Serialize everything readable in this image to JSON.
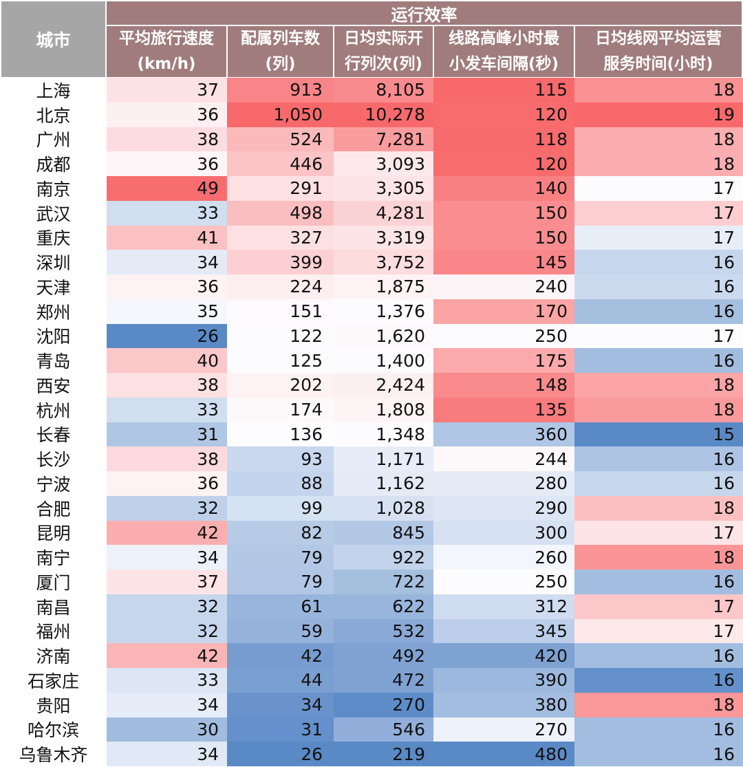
{
  "header": {
    "city_label": "城市",
    "group_label": "运行效率",
    "columns": [
      {
        "line1": "平均旅行速度",
        "line2": "(km/h)"
      },
      {
        "line1": "配属列车数",
        "line2": "(列)"
      },
      {
        "line1": "日均实际开",
        "line2": "行列次(列)"
      },
      {
        "line1": "线路高峰小时最",
        "line2": "小发车间隔(秒)"
      },
      {
        "line1": "日均线网平均运营",
        "line2": "服务时间(小时)"
      }
    ]
  },
  "colors": {
    "header_city_bg": "#a6a6a6",
    "header_group_bg": "#a07c7c",
    "scale_high_red": "#f8696b",
    "scale_mid_white": "#fcfcff",
    "scale_low_blue": "#5a8ac6"
  },
  "rows": [
    {
      "city": "上海",
      "v": [
        "37",
        "913",
        "8,105",
        "115",
        "18"
      ],
      "bg": [
        "#fde2e4",
        "#f98588",
        "#f98a8d",
        "#f8696b",
        "#fa9193"
      ]
    },
    {
      "city": "北京",
      "v": [
        "36",
        "1,050",
        "10,278",
        "120",
        "19"
      ],
      "bg": [
        "#fdf0f2",
        "#f8696b",
        "#f8696b",
        "#f86c6e",
        "#f8696b"
      ]
    },
    {
      "city": "广州",
      "v": [
        "38",
        "524",
        "7,281",
        "118",
        "18"
      ],
      "bg": [
        "#fcdcdf",
        "#fbb9bb",
        "#fa9c9e",
        "#f86b6d",
        "#fbadaf"
      ]
    },
    {
      "city": "成都",
      "v": [
        "36",
        "446",
        "3,093",
        "120",
        "18"
      ],
      "bg": [
        "#fdf5f7",
        "#fcc4c6",
        "#fde9eb",
        "#f86c6e",
        "#fbadaf"
      ]
    },
    {
      "city": "南京",
      "v": [
        "49",
        "291",
        "3,305",
        "140",
        "17"
      ],
      "bg": [
        "#f86d6f",
        "#fde0e2",
        "#fde4e6",
        "#f98082",
        "#fcfcff"
      ]
    },
    {
      "city": "武汉",
      "v": [
        "33",
        "498",
        "4,281",
        "150",
        "17"
      ],
      "bg": [
        "#d0deef",
        "#fbbec0",
        "#fcd3d5",
        "#fa8d90",
        "#fcced0"
      ]
    },
    {
      "city": "重庆",
      "v": [
        "41",
        "327",
        "3,319",
        "150",
        "17"
      ],
      "bg": [
        "#fbc1c3",
        "#fde0e2",
        "#fde4e6",
        "#fa8d90",
        "#e8eef8"
      ]
    },
    {
      "city": "深圳",
      "v": [
        "34",
        "399",
        "3,752",
        "145",
        "16"
      ],
      "bg": [
        "#e4ebf6",
        "#fcd0d2",
        "#fddcde",
        "#f98789",
        "#c6d6ec"
      ]
    },
    {
      "city": "天津",
      "v": [
        "36",
        "224",
        "1,875",
        "240",
        "16"
      ],
      "bg": [
        "#fdf2f4",
        "#fdeef0",
        "#fdf3f5",
        "#fcf5f7",
        "#cbdaee"
      ]
    },
    {
      "city": "郑州",
      "v": [
        "35",
        "151",
        "1,376",
        "170",
        "16"
      ],
      "bg": [
        "#f5f7fd",
        "#fcfafc",
        "#fcfcff",
        "#fba4a6",
        "#a5bfdf"
      ]
    },
    {
      "city": "沈阳",
      "v": [
        "26",
        "122",
        "1,620",
        "250",
        "17"
      ],
      "bg": [
        "#5a8ac6",
        "#fcfcff",
        "#fcf9fb",
        "#fcfcff",
        "#fcfcff"
      ]
    },
    {
      "city": "青岛",
      "v": [
        "40",
        "125",
        "1,400",
        "175",
        "16"
      ],
      "bg": [
        "#fbc8ca",
        "#fcfcff",
        "#fcfcff",
        "#fba9ab",
        "#a3bde0"
      ]
    },
    {
      "city": "西安",
      "v": [
        "38",
        "202",
        "2,424",
        "148",
        "18"
      ],
      "bg": [
        "#fde0e2",
        "#fdf3f5",
        "#fdf0f2",
        "#f98b8d",
        "#fba5a7"
      ]
    },
    {
      "city": "杭州",
      "v": [
        "33",
        "174",
        "1,808",
        "135",
        "18"
      ],
      "bg": [
        "#d0deef",
        "#fdf8fa",
        "#fdf4f6",
        "#f87b7d",
        "#fa9a9c"
      ]
    },
    {
      "city": "长春",
      "v": [
        "31",
        "136",
        "1,348",
        "360",
        "15"
      ],
      "bg": [
        "#b0c6e5",
        "#fdfcff",
        "#fcfcff",
        "#b0c6e5",
        "#5a8ac6"
      ]
    },
    {
      "city": "长沙",
      "v": [
        "38",
        "93",
        "1,171",
        "244",
        "16"
      ],
      "bg": [
        "#fddadd",
        "#c9d8ee",
        "#e6edf8",
        "#fdf9fb",
        "#adc4e4"
      ]
    },
    {
      "city": "宁波",
      "v": [
        "36",
        "88",
        "1,162",
        "280",
        "16"
      ],
      "bg": [
        "#fdf2f4",
        "#c4d4ec",
        "#e4ebf6",
        "#e4ebf6",
        "#c6d6ec"
      ]
    },
    {
      "city": "合肥",
      "v": [
        "32",
        "99",
        "1,028",
        "290",
        "18"
      ],
      "bg": [
        "#bfd1ea",
        "#d5e2f2",
        "#d6e2f2",
        "#dce6f4",
        "#fcbfc1"
      ]
    },
    {
      "city": "昆明",
      "v": [
        "42",
        "82",
        "845",
        "300",
        "17"
      ],
      "bg": [
        "#faaeb0",
        "#b7cbe6",
        "#b3c8e5",
        "#d6e2f2",
        "#fde4e6"
      ]
    },
    {
      "city": "南宁",
      "v": [
        "34",
        "79",
        "922",
        "260",
        "18"
      ],
      "bg": [
        "#ecf1fa",
        "#b3c8e5",
        "#c3d3eb",
        "#f3f6fc",
        "#f99597"
      ]
    },
    {
      "city": "厦门",
      "v": [
        "37",
        "79",
        "722",
        "250",
        "16"
      ],
      "bg": [
        "#fde5e7",
        "#b1c7e5",
        "#a5bfdf",
        "#fcfcff",
        "#a3bde0"
      ]
    },
    {
      "city": "南昌",
      "v": [
        "32",
        "61",
        "622",
        "312",
        "17"
      ],
      "bg": [
        "#c6d6ec",
        "#98b5dc",
        "#98b5dc",
        "#d0ddf0",
        "#fcc7c9"
      ]
    },
    {
      "city": "福州",
      "v": [
        "32",
        "59",
        "532",
        "345",
        "17"
      ],
      "bg": [
        "#c6d6ec",
        "#95b2db",
        "#8aa9d6",
        "#bcceea",
        "#fde8ea"
      ]
    },
    {
      "city": "济南",
      "v": [
        "42",
        "42",
        "492",
        "420",
        "16"
      ],
      "bg": [
        "#fbb5b7",
        "#779dd0",
        "#81a3d3",
        "#7ea2d2",
        "#a3bde0"
      ]
    },
    {
      "city": "石家庄",
      "v": [
        "33",
        "44",
        "472",
        "390",
        "16"
      ],
      "bg": [
        "#dce6f4",
        "#7a9fd1",
        "#7fa2d2",
        "#9db8de",
        "#6490cb"
      ]
    },
    {
      "city": "贵阳",
      "v": [
        "34",
        "34",
        "270",
        "380",
        "18"
      ],
      "bg": [
        "#e6edf8",
        "#6a93cc",
        "#5e8cc8",
        "#a3bde0",
        "#f99799"
      ]
    },
    {
      "city": "哈尔滨",
      "v": [
        "30",
        "31",
        "546",
        "270",
        "16"
      ],
      "bg": [
        "#a1bcdf",
        "#6490cb",
        "#91afda",
        "#eef2fa",
        "#a3bde0"
      ]
    },
    {
      "city": "乌鲁木齐",
      "v": [
        "34",
        "26",
        "219",
        "480",
        "16"
      ],
      "bg": [
        "#e0e9f5",
        "#5a8ac6",
        "#5a8ac6",
        "#5a8ac6",
        "#a3bde0"
      ]
    }
  ],
  "chart_data": {
    "type": "table",
    "title": "运行效率",
    "index_label": "城市",
    "columns": [
      "平均旅行速度(km/h)",
      "配属列车数(列)",
      "日均实际开行列次(列)",
      "线路高峰小时最小发车间隔(秒)",
      "日均线网平均运营服务时间(小时)"
    ],
    "color_scale": "red-white-blue per column (high=red, low=blue)",
    "rows": [
      {
        "city": "上海",
        "values": [
          37,
          913,
          8105,
          115,
          18
        ]
      },
      {
        "city": "北京",
        "values": [
          36,
          1050,
          10278,
          120,
          19
        ]
      },
      {
        "city": "广州",
        "values": [
          38,
          524,
          7281,
          118,
          18
        ]
      },
      {
        "city": "成都",
        "values": [
          36,
          446,
          3093,
          120,
          18
        ]
      },
      {
        "city": "南京",
        "values": [
          49,
          291,
          3305,
          140,
          17
        ]
      },
      {
        "city": "武汉",
        "values": [
          33,
          498,
          4281,
          150,
          17
        ]
      },
      {
        "city": "重庆",
        "values": [
          41,
          327,
          3319,
          150,
          17
        ]
      },
      {
        "city": "深圳",
        "values": [
          34,
          399,
          3752,
          145,
          16
        ]
      },
      {
        "city": "天津",
        "values": [
          36,
          224,
          1875,
          240,
          16
        ]
      },
      {
        "city": "郑州",
        "values": [
          35,
          151,
          1376,
          170,
          16
        ]
      },
      {
        "city": "沈阳",
        "values": [
          26,
          122,
          1620,
          250,
          17
        ]
      },
      {
        "city": "青岛",
        "values": [
          40,
          125,
          1400,
          175,
          16
        ]
      },
      {
        "city": "西安",
        "values": [
          38,
          202,
          2424,
          148,
          18
        ]
      },
      {
        "city": "杭州",
        "values": [
          33,
          174,
          1808,
          135,
          18
        ]
      },
      {
        "city": "长春",
        "values": [
          31,
          136,
          1348,
          360,
          15
        ]
      },
      {
        "city": "长沙",
        "values": [
          38,
          93,
          1171,
          244,
          16
        ]
      },
      {
        "city": "宁波",
        "values": [
          36,
          88,
          1162,
          280,
          16
        ]
      },
      {
        "city": "合肥",
        "values": [
          32,
          99,
          1028,
          290,
          18
        ]
      },
      {
        "city": "昆明",
        "values": [
          42,
          82,
          845,
          300,
          17
        ]
      },
      {
        "city": "南宁",
        "values": [
          34,
          79,
          922,
          260,
          18
        ]
      },
      {
        "city": "厦门",
        "values": [
          37,
          79,
          722,
          250,
          16
        ]
      },
      {
        "city": "南昌",
        "values": [
          32,
          61,
          622,
          312,
          17
        ]
      },
      {
        "city": "福州",
        "values": [
          32,
          59,
          532,
          345,
          17
        ]
      },
      {
        "city": "济南",
        "values": [
          42,
          42,
          492,
          420,
          16
        ]
      },
      {
        "city": "石家庄",
        "values": [
          33,
          44,
          472,
          390,
          16
        ]
      },
      {
        "city": "贵阳",
        "values": [
          34,
          34,
          270,
          380,
          18
        ]
      },
      {
        "city": "哈尔滨",
        "values": [
          30,
          31,
          546,
          270,
          16
        ]
      },
      {
        "city": "乌鲁木齐",
        "values": [
          34,
          26,
          219,
          480,
          16
        ]
      }
    ]
  }
}
